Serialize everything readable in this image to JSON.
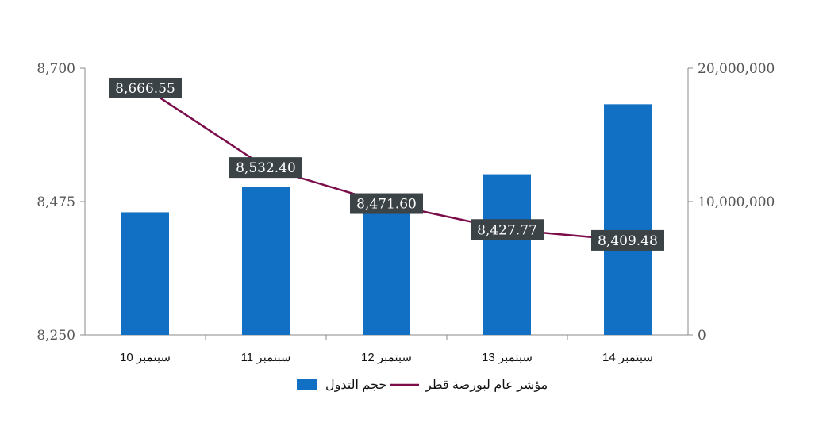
{
  "chart_data": {
    "type": "bar",
    "title": "",
    "categories": [
      "10 سبتمبر",
      "11 سبتمبر",
      "12 سبتمبر",
      "13 سبتمبر",
      "14 سبتمبر"
    ],
    "series": [
      {
        "name": "حجم التدول",
        "kind": "bar",
        "axis": "right",
        "color": "#1270C4",
        "values": [
          9200000,
          11100000,
          9100000,
          12050000,
          17300000
        ]
      },
      {
        "name": "مؤشر عام لبورصة قطر",
        "kind": "line",
        "axis": "left",
        "color": "#7B0D4B",
        "values": [
          8666.55,
          8532.4,
          8471.6,
          8427.77,
          8409.48
        ],
        "labels": [
          "8,666.55",
          "8,532.40",
          "8,471.60",
          "8,427.77",
          "8,409.48"
        ]
      }
    ],
    "y_left": {
      "ylim": [
        8250,
        8700
      ],
      "ticks": [
        "8,250",
        "8,475",
        "8,700"
      ]
    },
    "y_right": {
      "ylim": [
        0,
        20000000
      ],
      "ticks": [
        "0",
        "10,000,000",
        "20,000,000"
      ]
    },
    "grid": false,
    "legend": {
      "position": "bottom",
      "items": [
        "مؤشر عام لبورصة قطر",
        "حجم التدول"
      ]
    },
    "label_box_color": "#3B4347"
  }
}
